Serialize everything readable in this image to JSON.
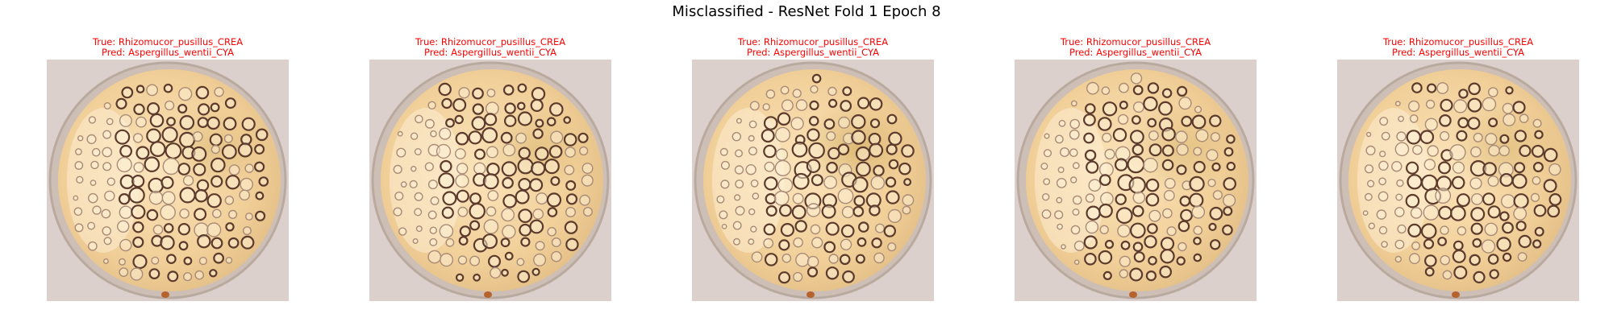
{
  "figure": {
    "title": "Misclassified - ResNet Fold 1 Epoch 8"
  },
  "colors": {
    "label_text": "#ff0000",
    "background": "#ffffff",
    "plate_bg": "#dcd0cc",
    "agar": "#f1cf98",
    "agar_dark": "#c9a24f",
    "ring_dark": "#5c3b2c",
    "ring_light": "#a98b76"
  },
  "icons": {
    "plate": "petri-dish-image"
  },
  "panels": [
    {
      "true_label": "True: Rhizomucor_pusillus_CREA",
      "pred_label": "Pred: Aspergillus_wentii_CYA"
    },
    {
      "true_label": "True: Rhizomucor_pusillus_CREA",
      "pred_label": "Pred: Aspergillus_wentii_CYA"
    },
    {
      "true_label": "True: Rhizomucor_pusillus_CREA",
      "pred_label": "Pred: Aspergillus_wentii_CYA"
    },
    {
      "true_label": "True: Rhizomucor_pusillus_CREA",
      "pred_label": "Pred: Aspergillus_wentii_CYA"
    },
    {
      "true_label": "True: Rhizomucor_pusillus_CREA",
      "pred_label": "Pred: Aspergillus_wentii_CYA"
    }
  ]
}
